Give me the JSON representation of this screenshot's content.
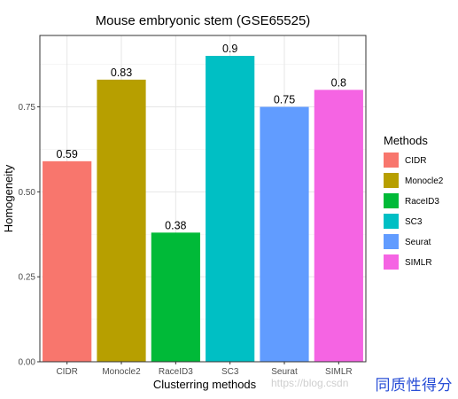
{
  "chart_data": {
    "type": "bar",
    "title": "Mouse embryonic stem (GSE65525)",
    "xlabel": "Clusterring methods",
    "ylabel": "Homogeneity",
    "categories": [
      "CIDR",
      "Monocle2",
      "RaceID3",
      "SC3",
      "Seurat",
      "SIMLR"
    ],
    "values": [
      0.59,
      0.83,
      0.38,
      0.9,
      0.75,
      0.8
    ],
    "data_labels": [
      "0.59",
      "0.83",
      "0.38",
      "0.9",
      "0.75",
      "0.8"
    ],
    "colors": [
      "#F8766D",
      "#B79F00",
      "#00BA38",
      "#00BFC4",
      "#619CFF",
      "#F564E3"
    ],
    "ylim": [
      0,
      0.96
    ],
    "yticks": [
      0.0,
      0.25,
      0.5,
      0.75
    ],
    "ytick_labels": [
      "0.00",
      "0.25",
      "0.50",
      "0.75"
    ],
    "grid": true,
    "legend": {
      "title": "Methods",
      "placement": "right",
      "items": [
        "CIDR",
        "Monocle2",
        "RaceID3",
        "SC3",
        "Seurat",
        "SIMLR"
      ]
    }
  },
  "watermark": "https://blog.csdn",
  "caption": "同质性得分"
}
